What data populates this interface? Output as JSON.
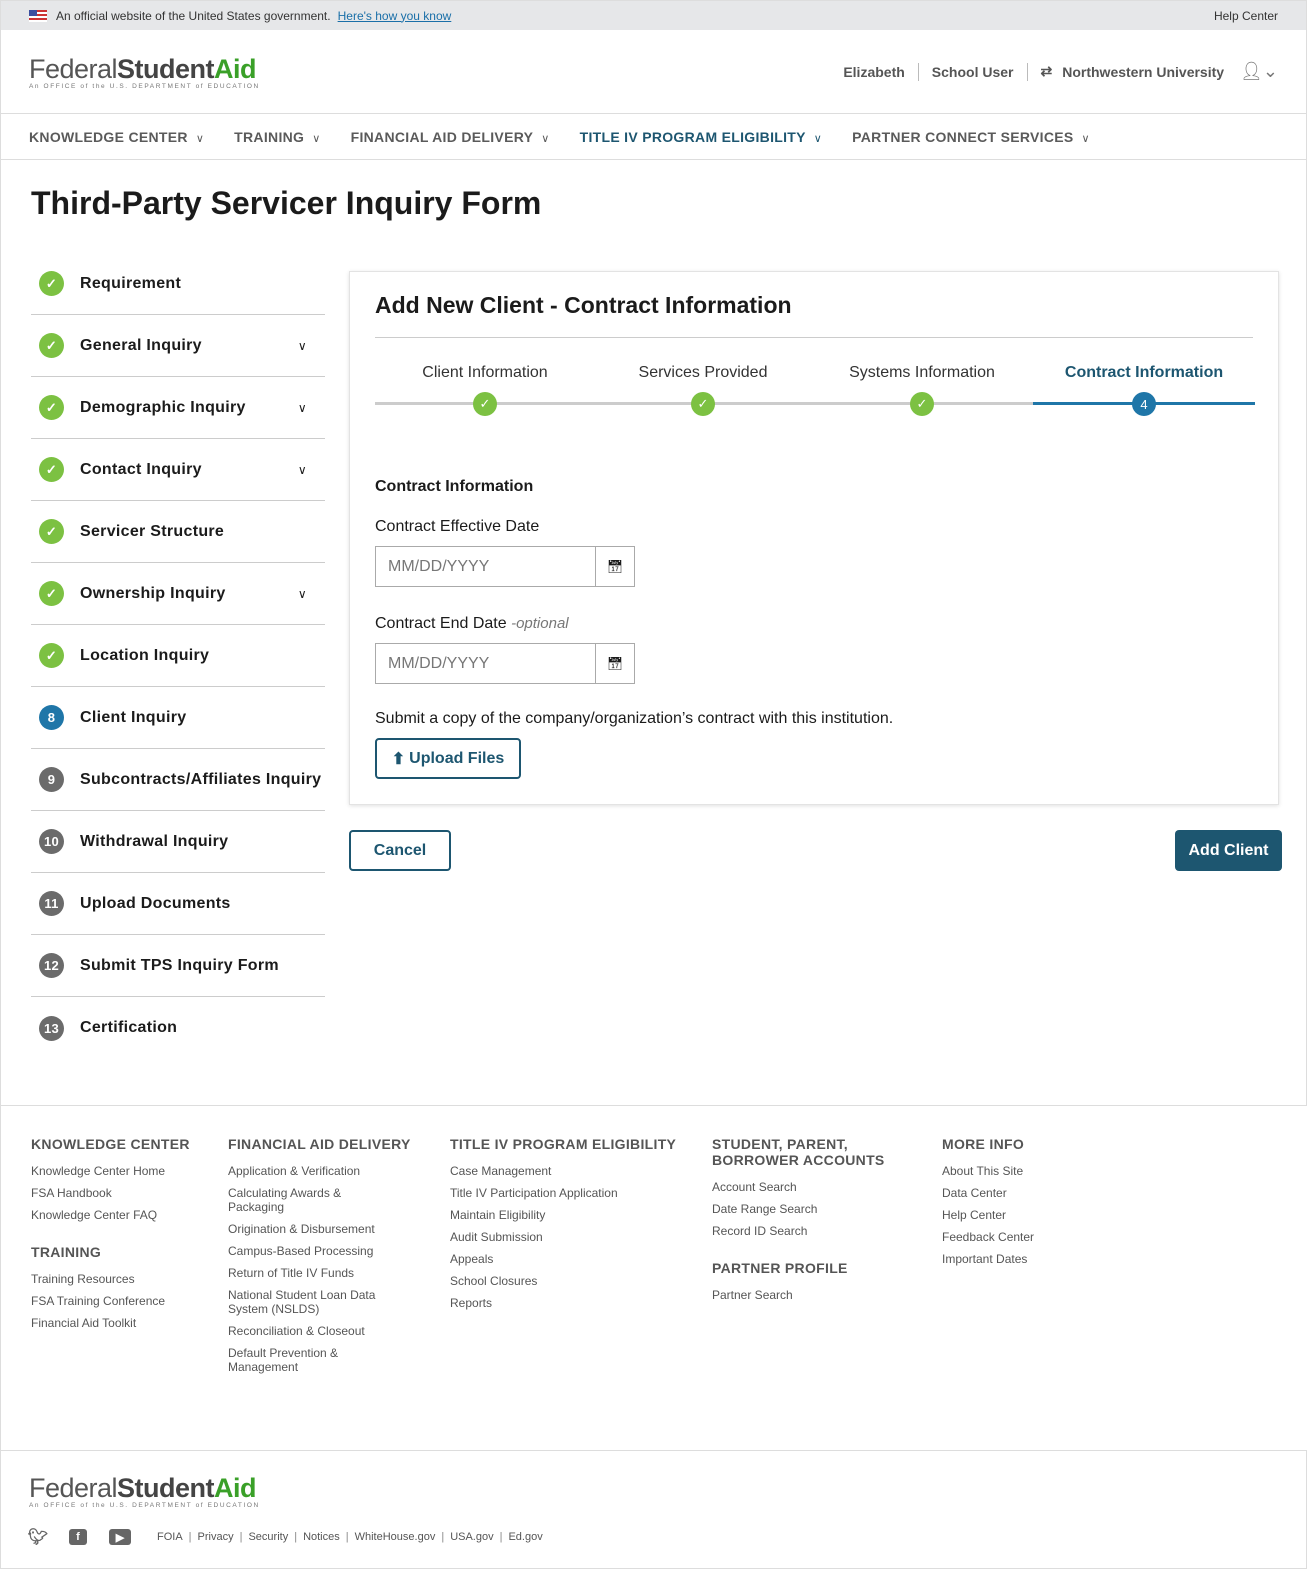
{
  "gov_banner": {
    "text": "An official website of the United States government.",
    "link": "Here's how you know",
    "help": "Help Center"
  },
  "logo": {
    "federal": "Federal",
    "student": "Student",
    "aid": "Aid",
    "tagline": "An OFFICE of the U.S. DEPARTMENT of EDUCATION"
  },
  "user": {
    "name": "Elizabeth",
    "role": "School User",
    "institution": "Northwestern University"
  },
  "nav": [
    {
      "label": "KNOWLEDGE CENTER"
    },
    {
      "label": "TRAINING"
    },
    {
      "label": "FINANCIAL AID DELIVERY"
    },
    {
      "label": "TITLE IV PROGRAM ELIGIBILITY",
      "active": true
    },
    {
      "label": "PARTNER CONNECT SERVICES"
    }
  ],
  "page_title": "Third-Party Servicer Inquiry Form",
  "sidebar": [
    {
      "badge": "✓",
      "label": "Requirement",
      "status": "done"
    },
    {
      "badge": "✓",
      "label": "General Inquiry",
      "status": "done",
      "expand": true
    },
    {
      "badge": "✓",
      "label": "Demographic Inquiry",
      "status": "done",
      "expand": true
    },
    {
      "badge": "✓",
      "label": "Contact Inquiry",
      "status": "done",
      "expand": true
    },
    {
      "badge": "✓",
      "label": "Servicer Structure",
      "status": "done"
    },
    {
      "badge": "✓",
      "label": "Ownership Inquiry",
      "status": "done",
      "expand": true
    },
    {
      "badge": "✓",
      "label": "Location Inquiry",
      "status": "done"
    },
    {
      "badge": "8",
      "label": "Client Inquiry",
      "status": "current"
    },
    {
      "badge": "9",
      "label": "Subcontracts/Affiliates Inquiry",
      "status": "todo"
    },
    {
      "badge": "10",
      "label": "Withdrawal Inquiry",
      "status": "todo"
    },
    {
      "badge": "11",
      "label": "Upload Documents",
      "status": "todo"
    },
    {
      "badge": "12",
      "label": "Submit TPS Inquiry Form",
      "status": "todo"
    },
    {
      "badge": "13",
      "label": "Certification",
      "status": "todo"
    }
  ],
  "card": {
    "title": "Add New Client - Contract Information",
    "steps": [
      {
        "label": "Client Information",
        "mark": "✓"
      },
      {
        "label": "Services Provided",
        "mark": "✓"
      },
      {
        "label": "Systems Information",
        "mark": "✓"
      },
      {
        "label": "Contract Information",
        "mark": "4"
      }
    ],
    "section": "Contract Information",
    "effective_label": "Contract Effective Date",
    "effective_placeholder": "MM/DD/YYYY",
    "end_label": "Contract End Date",
    "end_optional": "-optional",
    "end_placeholder": "MM/DD/YYYY",
    "upload_note": "Submit a copy of the company/organization’s contract with this institution.",
    "upload_label": "Upload Files"
  },
  "actions": {
    "cancel": "Cancel",
    "add": "Add Client"
  },
  "footer": {
    "knowledge": {
      "title": "KNOWLEDGE CENTER",
      "items": [
        "Knowledge Center Home",
        "FSA Handbook",
        "Knowledge Center FAQ"
      ]
    },
    "training": {
      "title": "TRAINING",
      "items": [
        "Training Resources",
        "FSA Training Conference",
        "Financial Aid Toolkit"
      ]
    },
    "fad": {
      "title": "FINANCIAL AID DELIVERY",
      "items": [
        "Application & Verification",
        "Calculating Awards & Packaging",
        "Origination & Disbursement",
        "Campus-Based Processing",
        "Return of Title IV Funds",
        "National Student Loan Data System (NSLDS)",
        "Reconciliation & Closeout",
        "Default Prevention & Management"
      ]
    },
    "t4": {
      "title": "TITLE IV PROGRAM ELIGIBILITY",
      "items": [
        "Case Management",
        "Title IV Participation Application",
        "Maintain Eligibility",
        "Audit Submission",
        "Appeals",
        "School Closures",
        "Reports"
      ]
    },
    "accounts": {
      "title": "STUDENT, PARENT, BORROWER ACCOUNTS",
      "items": [
        "Account Search",
        "Date Range Search",
        "Record ID Search"
      ]
    },
    "partner": {
      "title": "PARTNER PROFILE",
      "items": [
        "Partner Search"
      ]
    },
    "more": {
      "title": "MORE INFO",
      "items": [
        "About This Site",
        "Data Center",
        "Help Center",
        "Feedback Center",
        "Important Dates"
      ]
    },
    "links": [
      "FOIA",
      "Privacy",
      "Security",
      "Notices",
      "WhiteHouse.gov",
      "USA.gov",
      "Ed.gov"
    ]
  },
  "colors": {
    "primary": "#1d5670",
    "done": "#7cc142",
    "current": "#1f76a8",
    "aid_green": "#3aa028"
  }
}
